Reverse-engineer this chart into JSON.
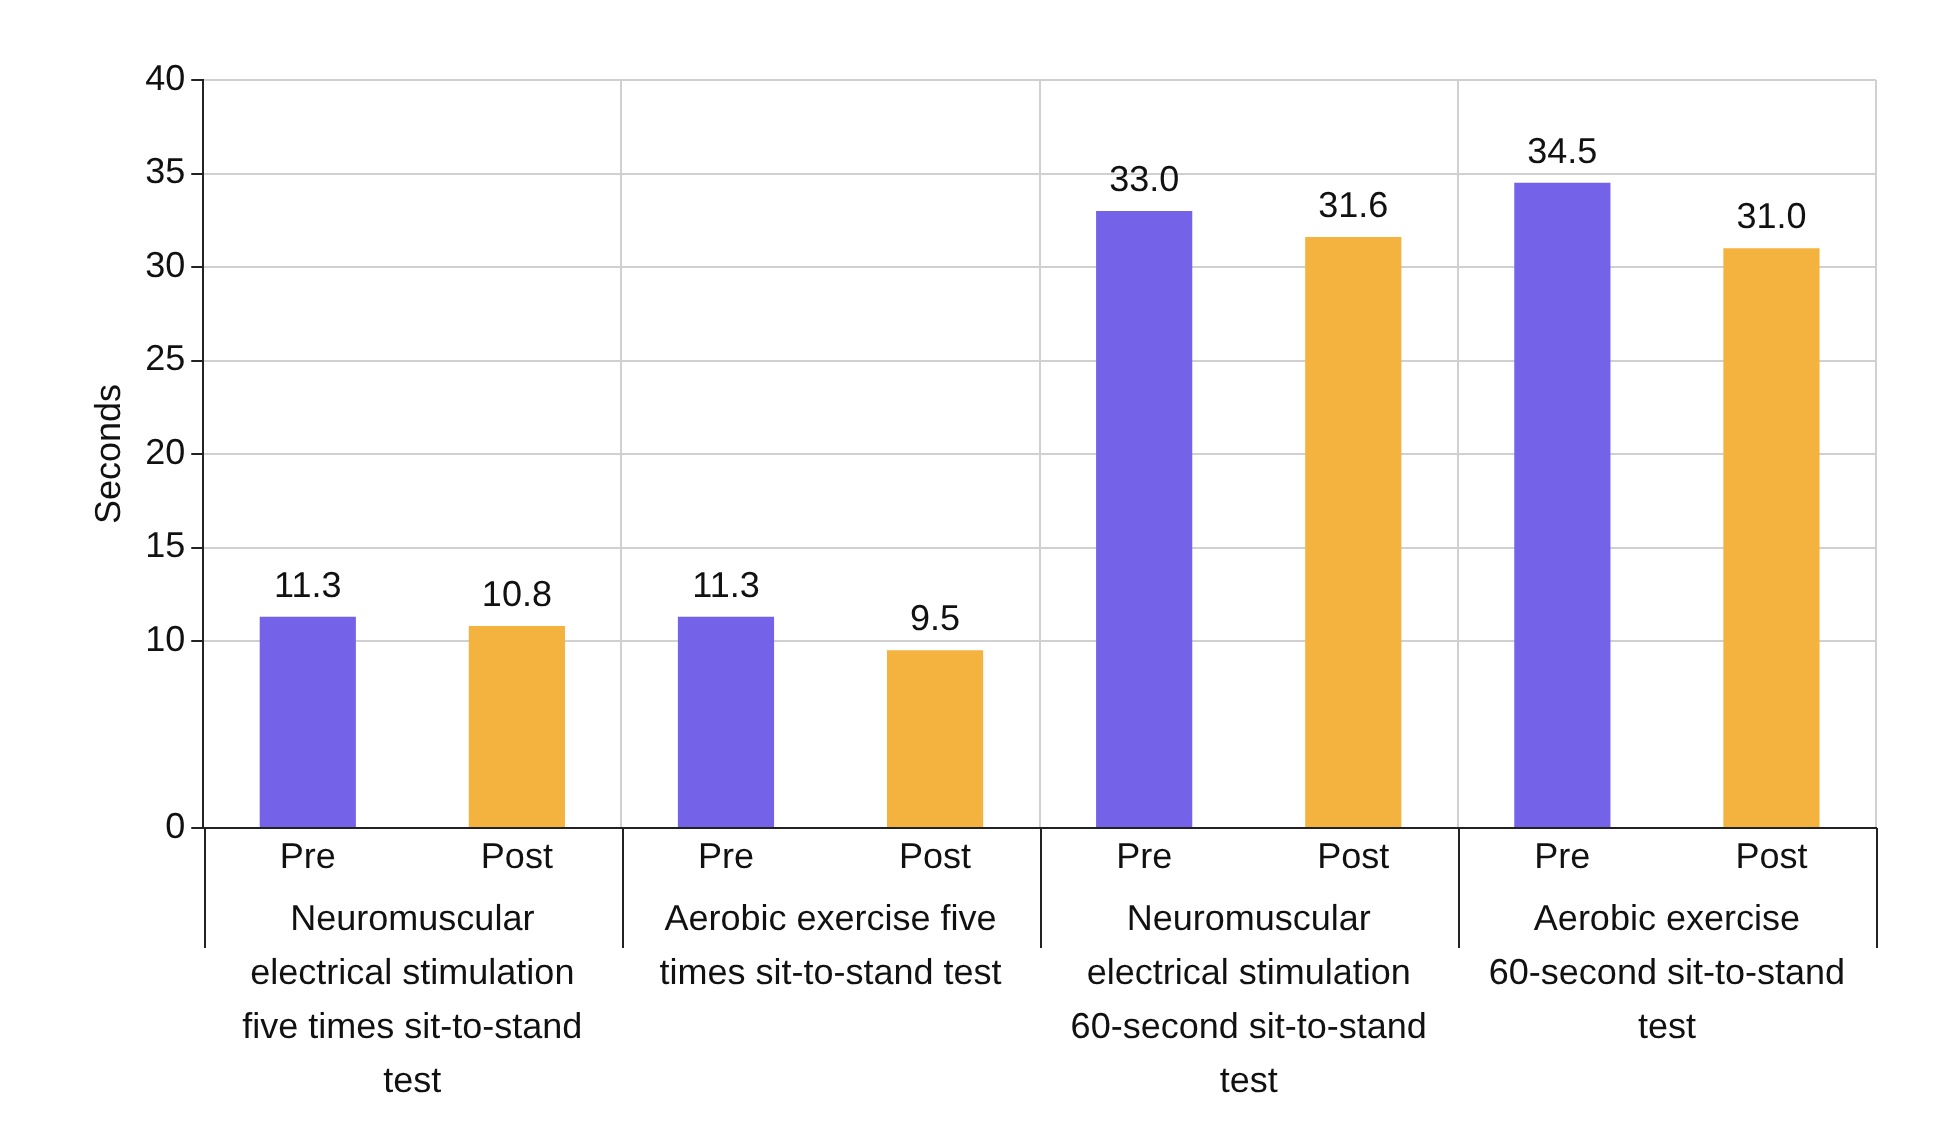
{
  "chart_data": {
    "type": "bar",
    "ylabel": "Seconds",
    "categories": [
      "Neuromuscular electrical stimulation five times sit-to-stand test",
      "Aerobic exercise five times sit-to-stand test",
      "Neuromuscular electrical stimulation 60-second sit-to-stand test",
      "Aerobic exercise 60-second sit-to-stand test"
    ],
    "series": [
      {
        "name": "Pre",
        "color": "#7462e8",
        "values": [
          11.3,
          11.3,
          33.0,
          34.5
        ],
        "value_labels": [
          "11.3",
          "11.3",
          "33.0",
          "34.5"
        ]
      },
      {
        "name": "Post",
        "color": "#f4b23e",
        "values": [
          10.8,
          9.5,
          31.6,
          31.0
        ],
        "value_labels": [
          "10.8",
          "9.5",
          "31.6",
          "31.0"
        ]
      }
    ],
    "ylim": [
      0,
      40
    ],
    "yticks": [
      0,
      10,
      15,
      20,
      25,
      30,
      35,
      40
    ],
    "grid": true
  }
}
